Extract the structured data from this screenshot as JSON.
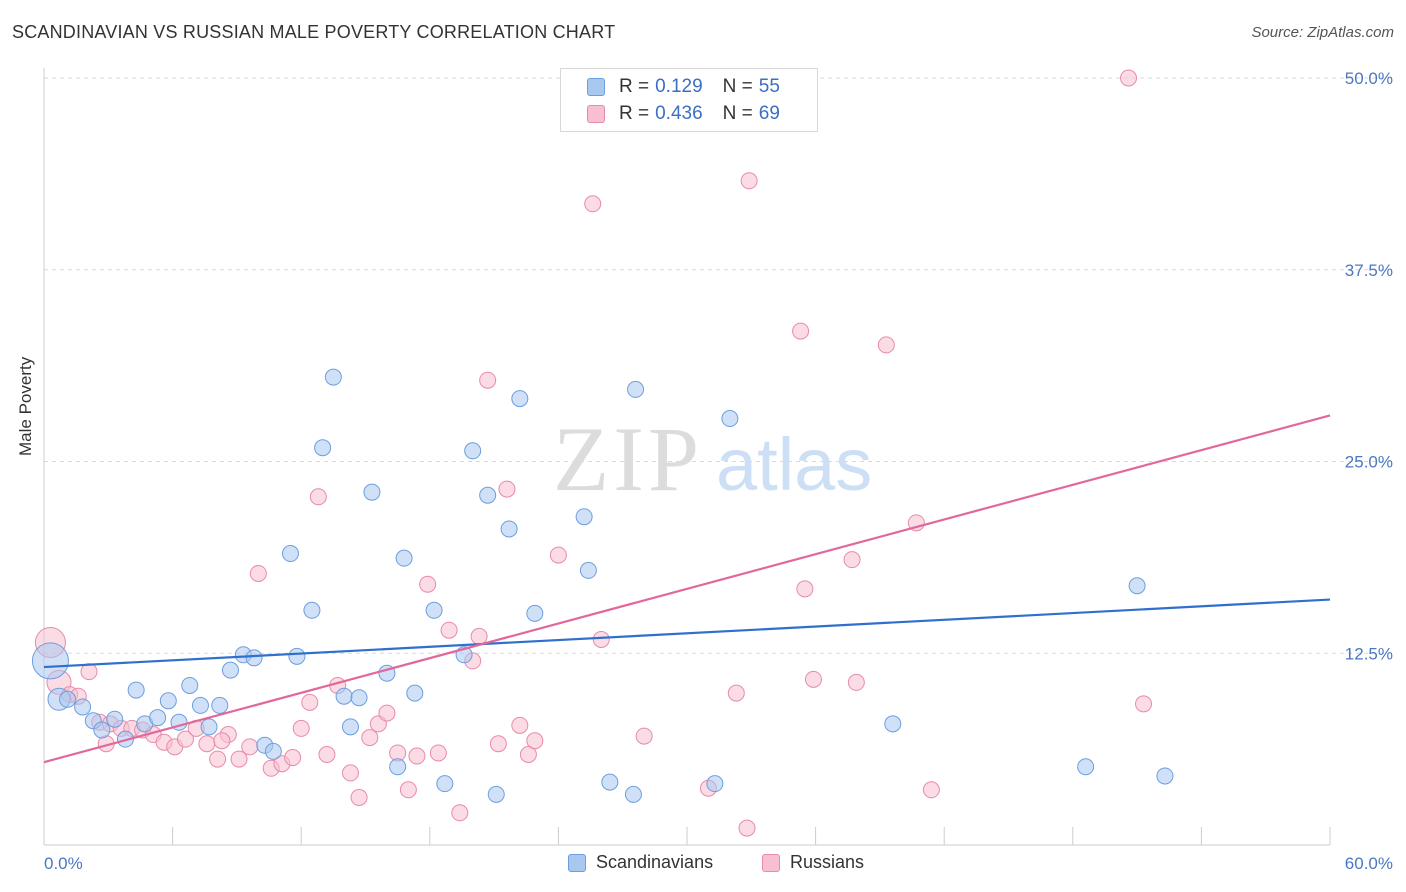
{
  "header": {
    "title": "SCANDINAVIAN VS RUSSIAN MALE POVERTY CORRELATION CHART",
    "source": "Source: ZipAtlas.com"
  },
  "watermark": {
    "zip": "ZIP",
    "atlas": "atlas"
  },
  "legend": {
    "r_label": "R =",
    "n_label": "N =",
    "scandinavians": {
      "r": "0.129",
      "n": "55"
    },
    "russians": {
      "r": "0.436",
      "n": "69"
    }
  },
  "bottom_legend": {
    "scandinavians": "Scandinavians",
    "russians": "Russians"
  },
  "colors": {
    "scandinavians_fill": "#a9c8f0",
    "scandinavians_stroke": "#6b9ee0",
    "scandinavians_line": "#2f6fce",
    "russians_fill": "#f7bfd0",
    "russians_stroke": "#e88aab",
    "russians_line": "#e2679a",
    "tick_text": "#4a78c2",
    "grid": "#d9d9d9"
  },
  "chart_data": {
    "type": "scatter",
    "title": "SCANDINAVIAN VS RUSSIAN MALE POVERTY CORRELATION CHART",
    "xlabel": "",
    "ylabel": "Male Poverty",
    "xlim": [
      0,
      60
    ],
    "ylim": [
      0,
      50
    ],
    "x_tick_labels": [
      "0.0%",
      "60.0%"
    ],
    "y_ticks": [
      12.5,
      25.0,
      37.5,
      50.0
    ],
    "y_tick_labels": [
      "12.5%",
      "25.0%",
      "37.5%",
      "50.0%"
    ],
    "grid": true,
    "legend_position": "top-center",
    "series": [
      {
        "name": "Scandinavians",
        "r": 0.129,
        "n": 55,
        "trend": {
          "x0": 0,
          "y0": 11.6,
          "x1": 60,
          "y1": 16.0
        },
        "points": [
          [
            0.3,
            12.0
          ],
          [
            0.7,
            9.5
          ],
          [
            1.1,
            9.5
          ],
          [
            1.8,
            9.0
          ],
          [
            2.3,
            8.1
          ],
          [
            2.7,
            7.5
          ],
          [
            3.3,
            8.2
          ],
          [
            3.8,
            6.9
          ],
          [
            4.3,
            10.1
          ],
          [
            4.7,
            7.9
          ],
          [
            5.3,
            8.3
          ],
          [
            5.8,
            9.4
          ],
          [
            6.3,
            8.0
          ],
          [
            6.8,
            10.4
          ],
          [
            7.3,
            9.1
          ],
          [
            7.7,
            7.7
          ],
          [
            8.2,
            9.1
          ],
          [
            8.7,
            11.4
          ],
          [
            9.3,
            12.4
          ],
          [
            9.8,
            12.2
          ],
          [
            10.3,
            6.5
          ],
          [
            10.7,
            6.1
          ],
          [
            11.5,
            19.0
          ],
          [
            11.8,
            12.3
          ],
          [
            12.5,
            15.3
          ],
          [
            13.0,
            25.9
          ],
          [
            13.5,
            30.5
          ],
          [
            14.0,
            9.7
          ],
          [
            14.3,
            7.7
          ],
          [
            14.7,
            9.6
          ],
          [
            15.3,
            23.0
          ],
          [
            16.0,
            11.2
          ],
          [
            16.5,
            5.1
          ],
          [
            16.8,
            18.7
          ],
          [
            17.3,
            9.9
          ],
          [
            18.2,
            15.3
          ],
          [
            18.7,
            4.0
          ],
          [
            19.6,
            12.4
          ],
          [
            20.0,
            25.7
          ],
          [
            20.7,
            22.8
          ],
          [
            21.1,
            3.3
          ],
          [
            21.7,
            20.6
          ],
          [
            22.2,
            29.1
          ],
          [
            22.9,
            15.1
          ],
          [
            25.2,
            21.4
          ],
          [
            25.4,
            17.9
          ],
          [
            26.4,
            4.1
          ],
          [
            27.5,
            3.3
          ],
          [
            27.6,
            29.7
          ],
          [
            31.3,
            4.0
          ],
          [
            32.0,
            27.8
          ],
          [
            39.6,
            7.9
          ],
          [
            48.6,
            5.1
          ],
          [
            51.0,
            16.9
          ],
          [
            52.3,
            4.5
          ]
        ],
        "point_sizes": {
          "0": 18,
          "1": 11
        }
      },
      {
        "name": "Russians",
        "r": 0.436,
        "n": 69,
        "trend": {
          "x0": 0,
          "y0": 5.4,
          "x1": 60,
          "y1": 28.0
        },
        "points": [
          [
            0.3,
            13.2
          ],
          [
            0.7,
            10.6
          ],
          [
            1.2,
            9.8
          ],
          [
            1.6,
            9.7
          ],
          [
            2.1,
            11.3
          ],
          [
            2.6,
            8.0
          ],
          [
            3.1,
            7.9
          ],
          [
            3.6,
            7.6
          ],
          [
            4.1,
            7.6
          ],
          [
            4.6,
            7.5
          ],
          [
            5.1,
            7.2
          ],
          [
            5.6,
            6.7
          ],
          [
            6.1,
            6.4
          ],
          [
            6.6,
            6.9
          ],
          [
            7.1,
            7.6
          ],
          [
            7.6,
            6.6
          ],
          [
            8.1,
            5.6
          ],
          [
            8.6,
            7.2
          ],
          [
            9.1,
            5.6
          ],
          [
            9.6,
            6.4
          ],
          [
            10.0,
            17.7
          ],
          [
            10.6,
            5.0
          ],
          [
            11.1,
            5.3
          ],
          [
            11.6,
            5.7
          ],
          [
            12.0,
            7.6
          ],
          [
            12.4,
            9.3
          ],
          [
            12.8,
            22.7
          ],
          [
            13.2,
            5.9
          ],
          [
            13.7,
            10.4
          ],
          [
            14.3,
            4.7
          ],
          [
            14.7,
            3.1
          ],
          [
            15.2,
            7.0
          ],
          [
            15.6,
            7.9
          ],
          [
            16.0,
            8.6
          ],
          [
            16.5,
            6.0
          ],
          [
            17.0,
            3.6
          ],
          [
            17.4,
            5.8
          ],
          [
            17.9,
            17.0
          ],
          [
            18.4,
            6.0
          ],
          [
            18.9,
            14.0
          ],
          [
            19.4,
            2.1
          ],
          [
            20.0,
            12.0
          ],
          [
            20.3,
            13.6
          ],
          [
            20.7,
            30.3
          ],
          [
            21.2,
            6.6
          ],
          [
            21.6,
            23.2
          ],
          [
            22.2,
            7.8
          ],
          [
            22.6,
            5.9
          ],
          [
            22.9,
            6.8
          ],
          [
            24.0,
            18.9
          ],
          [
            25.6,
            41.8
          ],
          [
            26.0,
            13.4
          ],
          [
            28.0,
            7.1
          ],
          [
            31.0,
            3.7
          ],
          [
            32.3,
            9.9
          ],
          [
            32.8,
            1.1
          ],
          [
            32.9,
            43.3
          ],
          [
            35.3,
            33.5
          ],
          [
            35.5,
            16.7
          ],
          [
            35.9,
            10.8
          ],
          [
            37.7,
            18.6
          ],
          [
            37.9,
            10.6
          ],
          [
            39.3,
            32.6
          ],
          [
            40.7,
            21.0
          ],
          [
            41.4,
            3.6
          ],
          [
            50.6,
            50.0
          ],
          [
            51.3,
            9.2
          ],
          [
            2.9,
            6.6
          ],
          [
            8.3,
            6.8
          ]
        ],
        "point_sizes": {
          "0": 15,
          "1": 12
        }
      }
    ]
  }
}
